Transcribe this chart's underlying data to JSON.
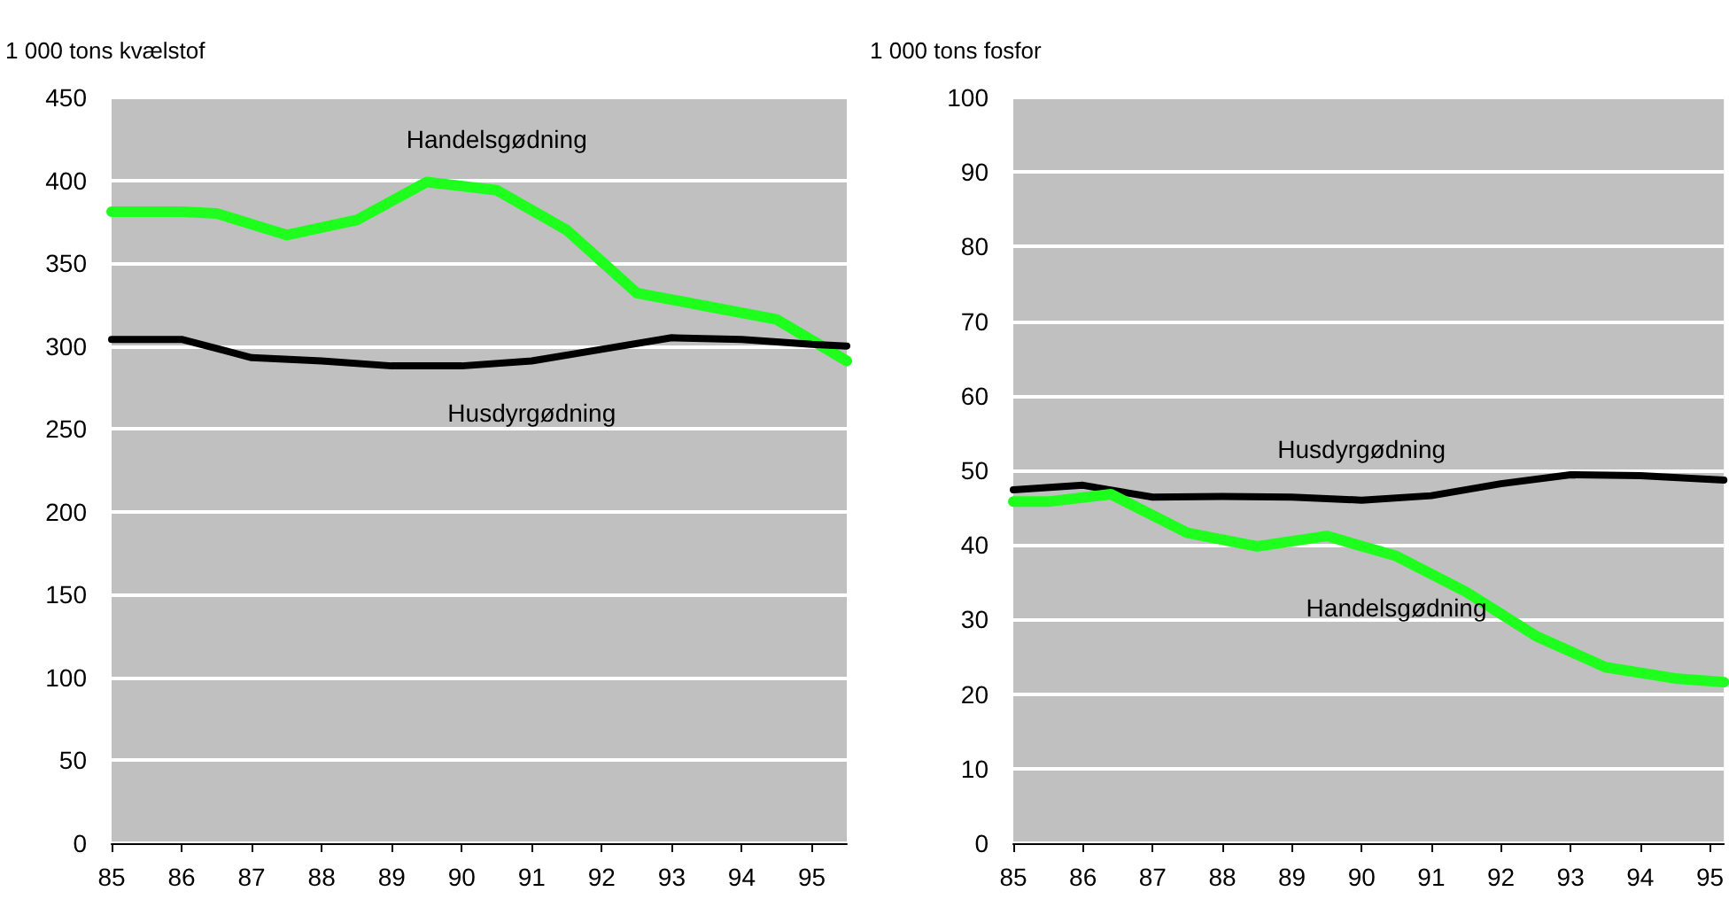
{
  "chart_data": [
    {
      "type": "line",
      "ylabel": "1 000 tons kvælstof",
      "xlim": [
        85,
        95.5
      ],
      "xticks": [
        85,
        86,
        87,
        88,
        89,
        90,
        91,
        92,
        93,
        94,
        95
      ],
      "ylim": [
        0,
        450
      ],
      "yticks": [
        0,
        50,
        100,
        150,
        200,
        250,
        300,
        350,
        400,
        450
      ],
      "grid": "y",
      "legend": false,
      "marker": "none",
      "line_style": "solid",
      "series": [
        {
          "name": "Handelsgødning",
          "color": "#1eff1e",
          "x": [
            85,
            86,
            86.5,
            87.5,
            88.5,
            89.5,
            90.5,
            91.5,
            92.5,
            93.5,
            94.5,
            95.5
          ],
          "values": [
            381,
            381,
            380,
            367,
            376,
            399,
            394,
            370,
            332,
            324,
            316,
            291
          ]
        },
        {
          "name": "Husdyrgødning",
          "color": "#000000",
          "x": [
            85,
            86,
            87,
            88,
            89,
            90,
            91,
            92,
            93,
            94,
            95,
            95.5
          ],
          "values": [
            304,
            304,
            293,
            291,
            288,
            288,
            291,
            298,
            305,
            304,
            301,
            300
          ]
        }
      ]
    },
    {
      "type": "line",
      "ylabel": "1 000 tons fosfor",
      "xlim": [
        85,
        95.2
      ],
      "xticks": [
        85,
        86,
        87,
        88,
        89,
        90,
        91,
        92,
        93,
        94,
        95
      ],
      "ylim": [
        0,
        100
      ],
      "yticks": [
        0,
        10,
        20,
        30,
        40,
        50,
        60,
        70,
        80,
        90,
        100
      ],
      "grid": "y",
      "legend": false,
      "marker": "none",
      "line_style": "solid",
      "series": [
        {
          "name": "Husdyrgødning",
          "color": "#000000",
          "x": [
            85,
            86,
            87,
            88,
            89,
            90,
            91,
            92,
            93,
            94,
            95.2
          ],
          "values": [
            47.4,
            48,
            46.4,
            46.5,
            46.4,
            46,
            46.6,
            48.2,
            49.4,
            49.3,
            48.7
          ]
        },
        {
          "name": "Handelsgødning",
          "color": "#1eff1e",
          "x": [
            85,
            85.5,
            86.4,
            87.5,
            88.5,
            89.5,
            90.5,
            91.5,
            92.5,
            93.5,
            94.5,
            95.2
          ],
          "values": [
            45.8,
            45.8,
            46.8,
            41.6,
            39.8,
            41.2,
            38.5,
            33.7,
            27.8,
            23.6,
            22.1,
            21.6
          ]
        }
      ]
    }
  ]
}
